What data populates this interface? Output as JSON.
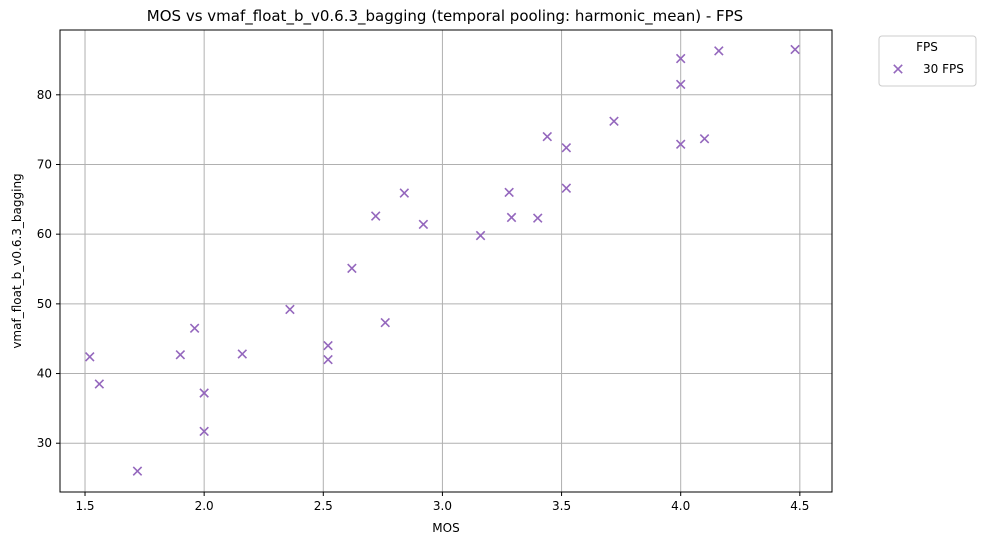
{
  "chart_data": {
    "type": "scatter",
    "title": "MOS vs vmaf_float_b_v0.6.3_bagging (temporal pooling: harmonic_mean) - FPS",
    "xlabel": "MOS",
    "ylabel": "vmaf_float_b_v0.6.3_bagging",
    "xlim": [
      1.395,
      4.635
    ],
    "ylim": [
      23.0,
      89.3
    ],
    "xticks": [
      1.5,
      2.0,
      2.5,
      3.0,
      3.5,
      4.0,
      4.5
    ],
    "xtick_labels": [
      "1.5",
      "2.0",
      "2.5",
      "3.0",
      "3.5",
      "4.0",
      "4.5"
    ],
    "yticks": [
      30,
      40,
      50,
      60,
      70,
      80
    ],
    "ytick_labels": [
      "30",
      "40",
      "50",
      "60",
      "70",
      "80"
    ],
    "grid": true,
    "legend": {
      "title": "FPS",
      "placement": "outside-top-right"
    },
    "series": [
      {
        "name": "30 FPS",
        "color": "#9467bd",
        "marker": "x",
        "points": [
          [
            1.52,
            42.4
          ],
          [
            1.56,
            38.5
          ],
          [
            1.72,
            26.0
          ],
          [
            1.9,
            42.7
          ],
          [
            1.96,
            46.5
          ],
          [
            2.0,
            37.2
          ],
          [
            2.0,
            31.7
          ],
          [
            2.16,
            42.8
          ],
          [
            2.36,
            49.2
          ],
          [
            2.52,
            44.0
          ],
          [
            2.52,
            42.0
          ],
          [
            2.62,
            55.1
          ],
          [
            2.72,
            62.6
          ],
          [
            2.76,
            47.3
          ],
          [
            2.84,
            65.9
          ],
          [
            2.92,
            61.4
          ],
          [
            3.16,
            59.8
          ],
          [
            3.28,
            66.0
          ],
          [
            3.29,
            62.4
          ],
          [
            3.4,
            62.3
          ],
          [
            3.44,
            74.0
          ],
          [
            3.52,
            72.4
          ],
          [
            3.52,
            66.6
          ],
          [
            3.72,
            76.2
          ],
          [
            4.0,
            85.2
          ],
          [
            4.0,
            81.5
          ],
          [
            4.0,
            72.9
          ],
          [
            4.1,
            73.7
          ],
          [
            4.16,
            86.3
          ],
          [
            4.48,
            86.5
          ]
        ]
      }
    ]
  }
}
